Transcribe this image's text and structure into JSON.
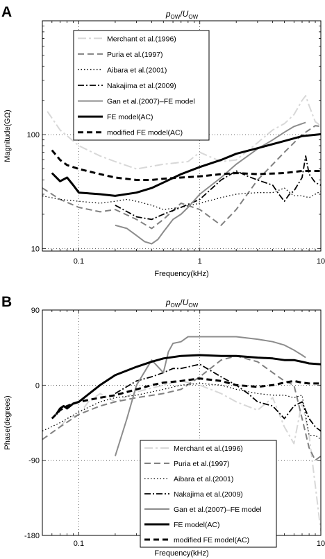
{
  "chart_data": [
    {
      "panel": "A",
      "type": "line",
      "title": "p_OW / U_OW",
      "title_base": "p",
      "title_sub": "OW",
      "title_base2": "U",
      "title_sub2": "OW",
      "xlabel": "Frequency(kHz)",
      "ylabel": "Magnitude(GΩ)",
      "xscale": "log",
      "yscale": "log",
      "xlim": [
        0.05,
        10
      ],
      "ylim": [
        9.5,
        1000
      ],
      "xticks": [
        0.1,
        1,
        10
      ],
      "xtick_labels": [
        "0.1",
        "1",
        "10"
      ],
      "yticks": [
        10,
        100
      ],
      "ytick_labels": [
        "10",
        "100"
      ],
      "grid": "dotted at major ticks",
      "legend_position": "top-left",
      "series": [
        {
          "name": "Merchant et al.(1996)",
          "color": "#d8d8d8",
          "dash": "12,4,3,4",
          "width": 2,
          "x": [
            0.055,
            0.07,
            0.1,
            0.15,
            0.2,
            0.3,
            0.5,
            0.8,
            1.0,
            1.5,
            2.0,
            3.0,
            4.0,
            5.0,
            6.0,
            7.0,
            7.5,
            8.0,
            9.0,
            10.0
          ],
          "y": [
            160,
            110,
            80,
            65,
            58,
            50,
            55,
            58,
            70,
            58,
            60,
            85,
            110,
            125,
            150,
            200,
            220,
            180,
            130,
            120
          ]
        },
        {
          "name": "Puria et al.(1997)",
          "color": "#808080",
          "dash": "9,5",
          "width": 2,
          "x": [
            0.05,
            0.07,
            0.1,
            0.15,
            0.2,
            0.3,
            0.4,
            0.5,
            0.7,
            1.0,
            1.5,
            2.0,
            3.0,
            5.0,
            7.0,
            9.0,
            10.0
          ],
          "y": [
            34,
            27,
            23,
            21,
            22,
            18,
            15,
            18,
            25,
            22,
            16,
            22,
            40,
            70,
            100,
            120,
            118
          ]
        },
        {
          "name": "Aibara et al.(2001)",
          "color": "#000000",
          "dash": "1.5,3",
          "width": 1.3,
          "x": [
            0.05,
            0.07,
            0.1,
            0.15,
            0.2,
            0.25,
            0.3,
            0.4,
            0.5,
            0.7,
            1.0,
            1.5,
            2.0,
            3.0,
            4.0,
            5.0,
            6.0,
            7.0,
            8.0,
            9.0,
            10.0
          ],
          "y": [
            29,
            27,
            26,
            25,
            26,
            27,
            26,
            24,
            22,
            23,
            25,
            28,
            30,
            31,
            31,
            34,
            29,
            29,
            28,
            30,
            32
          ]
        },
        {
          "name": "Nakajima et al.(2009)",
          "color": "#000000",
          "dash": "9,3,2,3",
          "width": 1.8,
          "x": [
            0.2,
            0.3,
            0.4,
            0.5,
            0.7,
            1.0,
            1.5,
            2.0,
            2.5,
            3.0,
            4.0,
            4.5,
            5.0,
            5.5,
            6.0,
            7.0,
            7.5,
            8.0,
            9.0,
            10.0
          ],
          "y": [
            24,
            19,
            18,
            20,
            23,
            27,
            40,
            48,
            43,
            40,
            36,
            30,
            26,
            30,
            32,
            42,
            65,
            45,
            38,
            36
          ]
        },
        {
          "name": "Gan et al.(2007)–FE model",
          "color": "#8c8c8c",
          "dash": "",
          "width": 2,
          "x": [
            0.2,
            0.25,
            0.3,
            0.35,
            0.4,
            0.45,
            0.5,
            0.6,
            0.7,
            0.8,
            1.0,
            1.5,
            2.0,
            3.0,
            4.0,
            5.0,
            6.0,
            7.0,
            7.5
          ],
          "y": [
            16,
            15,
            13,
            11.5,
            11,
            12,
            14,
            18,
            20,
            23,
            30,
            42,
            55,
            75,
            90,
            105,
            118,
            125,
            128
          ]
        },
        {
          "name": "FE model(AC)",
          "color": "#000000",
          "dash": "",
          "width": 3,
          "x": [
            0.06,
            0.07,
            0.08,
            0.09,
            0.1,
            0.15,
            0.2,
            0.3,
            0.4,
            0.5,
            0.7,
            1.0,
            1.5,
            2.0,
            3.0,
            5.0,
            7.0,
            10.0
          ],
          "y": [
            46,
            39,
            42,
            36,
            31,
            30,
            29,
            31,
            34,
            38,
            45,
            52,
            60,
            68,
            76,
            88,
            97,
            101
          ]
        },
        {
          "name": "modified FE model(AC)",
          "color": "#000000",
          "dash": "8,5",
          "width": 3,
          "x": [
            0.06,
            0.07,
            0.08,
            0.1,
            0.15,
            0.2,
            0.3,
            0.4,
            0.5,
            0.7,
            1.0,
            1.5,
            2.0,
            3.0,
            5.0,
            7.0,
            10.0
          ],
          "y": [
            73,
            60,
            54,
            50,
            45,
            42,
            40,
            40,
            41,
            42,
            43,
            45,
            46,
            45,
            46,
            48,
            48
          ]
        }
      ]
    },
    {
      "panel": "B",
      "type": "line",
      "title": "p_OW / U_OW",
      "title_base": "p",
      "title_sub": "OW",
      "title_base2": "U",
      "title_sub2": "OW",
      "xlabel": "Frequency(kHz)",
      "ylabel": "Phase(degrees)",
      "xscale": "log",
      "yscale": "linear",
      "xlim": [
        0.05,
        10
      ],
      "ylim": [
        -180,
        90
      ],
      "xticks": [
        0.1,
        1,
        10
      ],
      "xtick_labels": [
        "0.1",
        "1",
        "10"
      ],
      "yticks": [
        -180,
        -90,
        0,
        90
      ],
      "ytick_labels": [
        "-180",
        "-90",
        "0",
        "90"
      ],
      "grid": "dotted at major ticks",
      "legend_position": "bottom-right",
      "series": [
        {
          "name": "Merchant et al.(1996)",
          "color": "#d8d8d8",
          "dash": "12,4,3,4",
          "width": 2,
          "x": [
            0.07,
            0.08,
            0.1,
            0.12,
            0.15,
            0.2,
            0.3,
            0.5,
            0.7,
            1.0,
            1.5,
            2.0,
            3.0,
            4.0,
            5.0,
            6.0,
            7.0,
            8.0,
            9.0,
            10.0
          ],
          "y": [
            -50,
            -40,
            -35,
            -20,
            -10,
            -20,
            -8,
            0,
            5,
            0,
            -10,
            -20,
            -30,
            -15,
            -50,
            -70,
            -20,
            -60,
            -120,
            -175
          ]
        },
        {
          "name": "Puria et al.(1997)",
          "color": "#808080",
          "dash": "9,5",
          "width": 2,
          "x": [
            0.05,
            0.07,
            0.1,
            0.15,
            0.2,
            0.3,
            0.5,
            0.7,
            1.0,
            1.5,
            2.0,
            3.0,
            4.0,
            5.0,
            6.0,
            7.0,
            8.0,
            9.0,
            10.0
          ],
          "y": [
            -65,
            -50,
            -35,
            -25,
            -20,
            -15,
            -10,
            -5,
            10,
            30,
            35,
            28,
            15,
            5,
            0,
            -40,
            -75,
            -90,
            -85
          ]
        },
        {
          "name": "Aibara et al.(2001)",
          "color": "#000000",
          "dash": "1.5,3",
          "width": 1.3,
          "x": [
            0.05,
            0.07,
            0.1,
            0.15,
            0.2,
            0.3,
            0.5,
            0.7,
            1.0,
            1.5,
            2.0,
            3.0,
            4.0,
            5.0,
            6.0,
            7.0,
            8.0,
            9.0,
            10.0
          ],
          "y": [
            -55,
            -45,
            -32,
            -20,
            -15,
            -12,
            -5,
            0,
            2,
            0,
            -5,
            -10,
            -12,
            -12,
            -15,
            -12,
            -60,
            -60,
            -65
          ]
        },
        {
          "name": "Nakajima et al.(2009)",
          "color": "#000000",
          "dash": "9,3,2,3",
          "width": 1.8,
          "x": [
            0.2,
            0.3,
            0.4,
            0.5,
            0.6,
            0.7,
            1.0,
            1.5,
            2.0,
            2.5,
            3.0,
            4.0,
            5.0,
            6.0,
            7.0,
            8.0,
            9.0,
            10.0
          ],
          "y": [
            -10,
            5,
            10,
            15,
            20,
            20,
            25,
            10,
            0,
            -10,
            -20,
            -25,
            -40,
            -25,
            -20,
            -40,
            -50,
            -55
          ]
        },
        {
          "name": "Gan et al.(2007)–FE model",
          "color": "#8c8c8c",
          "dash": "",
          "width": 2,
          "x": [
            0.2,
            0.25,
            0.3,
            0.4,
            0.5,
            0.55,
            0.6,
            0.7,
            0.8,
            1.0,
            1.5,
            2.0,
            3.0,
            4.0,
            5.0,
            6.0,
            7.0,
            7.5
          ],
          "y": [
            -85,
            -40,
            0,
            30,
            15,
            40,
            50,
            52,
            58,
            58,
            58,
            58,
            55,
            52,
            48,
            42,
            36,
            33
          ]
        },
        {
          "name": "FE model(AC)",
          "color": "#000000",
          "dash": "",
          "width": 3,
          "x": [
            0.065,
            0.07,
            0.075,
            0.08,
            0.09,
            0.1,
            0.15,
            0.2,
            0.3,
            0.4,
            0.5,
            0.7,
            1.0,
            1.5,
            2.0,
            3.0,
            4.0,
            5.0,
            6.0,
            7.0,
            8.0,
            10.0
          ],
          "y": [
            -35,
            -28,
            -25,
            -28,
            -22,
            -20,
            0,
            12,
            22,
            28,
            32,
            35,
            36,
            35,
            35,
            33,
            32,
            30,
            30,
            28,
            26,
            25
          ]
        },
        {
          "name": "modified FE model(AC)",
          "color": "#000000",
          "dash": "8,5",
          "width": 3,
          "x": [
            0.06,
            0.07,
            0.08,
            0.1,
            0.15,
            0.2,
            0.3,
            0.4,
            0.5,
            0.7,
            1.0,
            1.5,
            2.0,
            3.0,
            4.0,
            5.0,
            6.0,
            7.0,
            8.0,
            10.0
          ],
          "y": [
            -40,
            -30,
            -25,
            -20,
            -15,
            -12,
            -5,
            0,
            3,
            5,
            8,
            5,
            0,
            -2,
            0,
            3,
            5,
            3,
            2,
            2
          ]
        }
      ]
    }
  ],
  "legend_entries": [
    {
      "label": "Merchant et al.(1996)"
    },
    {
      "label": "Puria et al.(1997)"
    },
    {
      "label": "Aibara et al.(2001)"
    },
    {
      "label": "Nakajima et al.(2009)"
    },
    {
      "label": "Gan et al.(2007)–FE model"
    },
    {
      "label": "FE model(AC)"
    },
    {
      "label": "modified FE model(AC)"
    }
  ]
}
